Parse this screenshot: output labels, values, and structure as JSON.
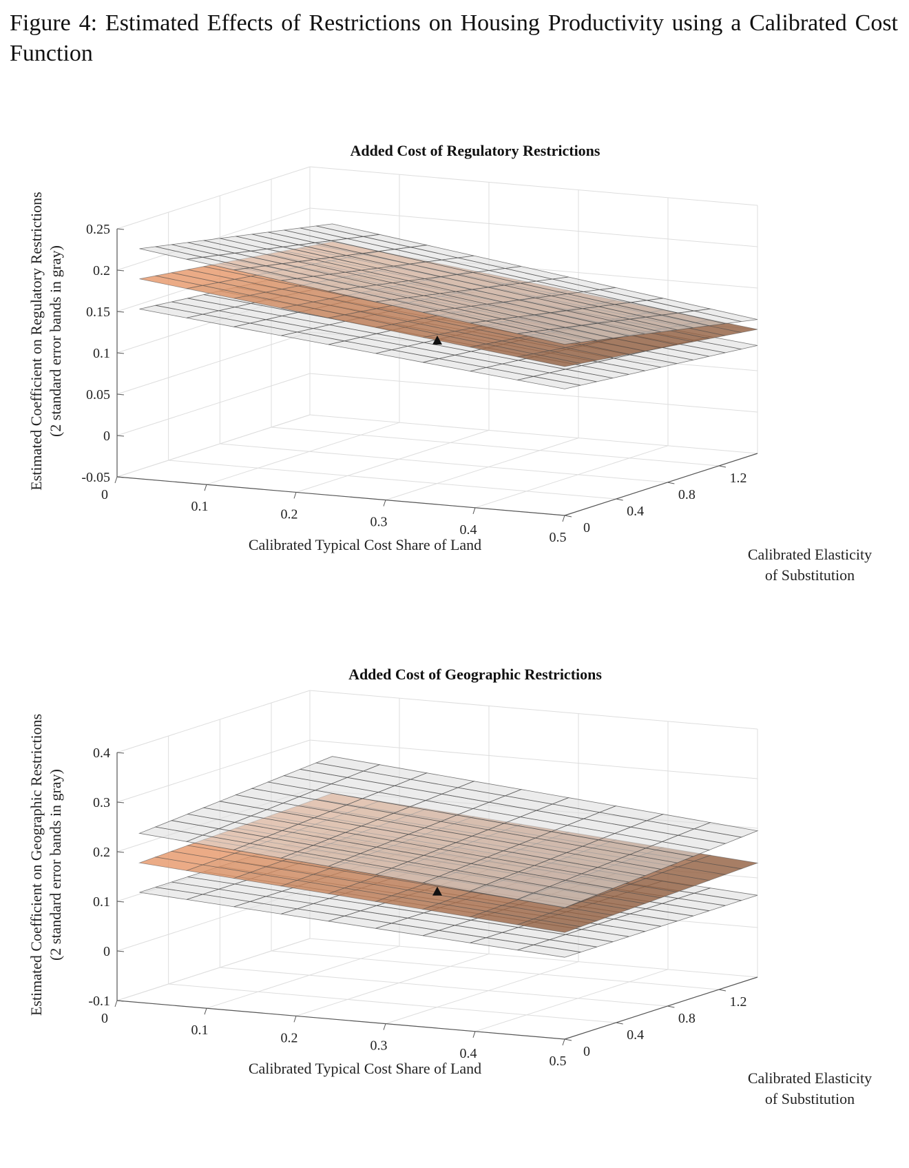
{
  "caption": "Figure 4: Estimated Effects of Restrictions on Housing Productivity using a Calibrated Cost Function",
  "colors": {
    "surface_low": "#f0a070",
    "surface_high": "#8a5a3e",
    "band_fill": "#dcdcdc",
    "band_line": "#4a4a4a",
    "grid": "#dddddd",
    "axis": "#555555"
  },
  "chart_data": [
    {
      "type": "surface3d",
      "title": "Added Cost of Regulatory Restrictions",
      "xlabel": "Calibrated Typical Cost Share of Land",
      "ylabel": [
        "Calibrated Elasticity",
        "of Substitution"
      ],
      "zlabel": [
        "Estimated Coefficient on Regulatory Restrictions",
        "(2 standard error bands in gray)"
      ],
      "xlim": [
        0,
        0.5
      ],
      "ylim": [
        0,
        1.5
      ],
      "zlim": [
        -0.05,
        0.25
      ],
      "x_ticks": [
        "0",
        "0.1",
        "0.2",
        "0.3",
        "0.4",
        "0.5"
      ],
      "y_ticks": [
        "0",
        "0.4",
        "0.8",
        "1.2"
      ],
      "z_ticks": [
        "-0.05",
        "0",
        "0.05",
        "0.1",
        "0.15",
        "0.2",
        "0.25"
      ],
      "z_tick_values": [
        -0.05,
        0,
        0.05,
        0.1,
        0.15,
        0.2,
        0.25
      ],
      "x_range": [
        0.025,
        0.5
      ],
      "y_range": [
        0,
        1.5
      ],
      "estimate": {
        "a": 0.195,
        "b": -0.13,
        "c": -0.02
      },
      "upper_band": {
        "a": 0.232,
        "b": -0.15,
        "c": -0.03
      },
      "lower_band": {
        "a": 0.158,
        "b": -0.11,
        "c": -0.015
      },
      "marker": {
        "x": 0.25,
        "y": 0.75,
        "z": 0.1
      }
    },
    {
      "type": "surface3d",
      "title": "Added Cost of Geographic Restrictions",
      "xlabel": "Calibrated Typical Cost Share of Land",
      "ylabel": [
        "Calibrated Elasticity",
        "of Substitution"
      ],
      "zlabel": [
        "Estimated Coefficient on Geographic Restrictions",
        "(2 standard error bands in gray)"
      ],
      "xlim": [
        0,
        0.5
      ],
      "ylim": [
        0,
        1.5
      ],
      "zlim": [
        -0.1,
        0.4
      ],
      "x_ticks": [
        "0",
        "0.1",
        "0.2",
        "0.3",
        "0.4",
        "0.5"
      ],
      "y_ticks": [
        "0",
        "0.4",
        "0.8",
        "1.2"
      ],
      "z_ticks": [
        "-0.1",
        "0",
        "0.1",
        "0.2",
        "0.3",
        "0.4"
      ],
      "z_tick_values": [
        -0.1,
        0,
        0.1,
        0.2,
        0.3,
        0.4
      ],
      "x_range": [
        0.025,
        0.5
      ],
      "y_range": [
        0,
        1.5
      ],
      "estimate": {
        "a": 0.185,
        "b": -0.14,
        "c": 0.01
      },
      "upper_band": {
        "a": 0.245,
        "b": -0.16,
        "c": 0.02
      },
      "lower_band": {
        "a": 0.125,
        "b": -0.12,
        "c": 0.0
      },
      "marker": {
        "x": 0.25,
        "y": 0.75,
        "z": 0.095
      }
    }
  ]
}
